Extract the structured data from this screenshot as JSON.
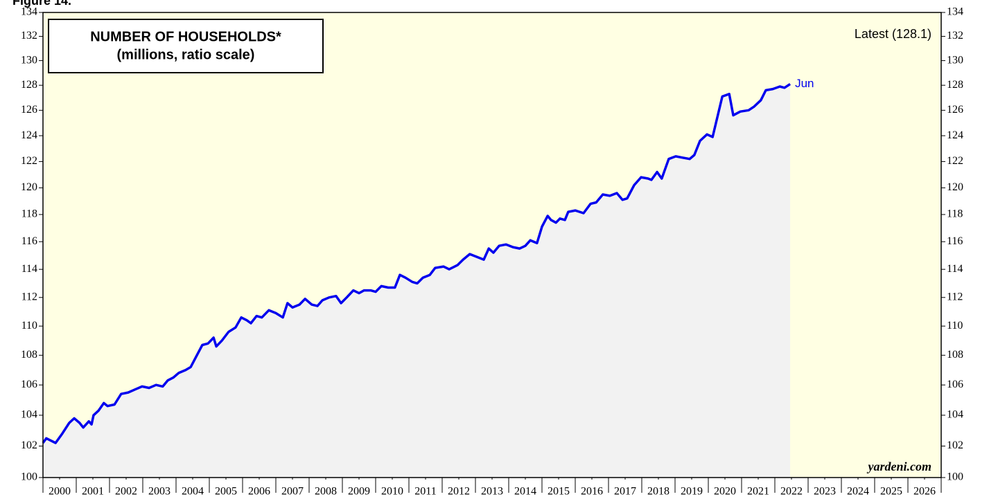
{
  "chart_data": {
    "type": "line",
    "figure_label": "Figure 14.",
    "title": "NUMBER OF HOUSEHOLDS*",
    "subtitle": "(millions, ratio scale)",
    "annotations": [
      "Latest (128.1)",
      "Jun",
      "yardeni.com"
    ],
    "log_scale": true,
    "color": "#0000ee",
    "x": [
      2000.0,
      2000.1,
      2000.38,
      2000.58,
      2000.79,
      2000.94,
      2001.1,
      2001.21,
      2001.38,
      2001.46,
      2001.52,
      2001.67,
      2001.83,
      2001.94,
      2002.15,
      2002.35,
      2002.56,
      2002.77,
      2002.98,
      2003.19,
      2003.4,
      2003.6,
      2003.75,
      2003.92,
      2004.08,
      2004.29,
      2004.44,
      2004.65,
      2004.79,
      2004.96,
      2005.13,
      2005.21,
      2005.38,
      2005.58,
      2005.79,
      2005.96,
      2006.13,
      2006.25,
      2006.42,
      2006.58,
      2006.79,
      2007.0,
      2007.21,
      2007.35,
      2007.5,
      2007.71,
      2007.88,
      2008.08,
      2008.25,
      2008.4,
      2008.6,
      2008.81,
      2008.96,
      2009.13,
      2009.33,
      2009.5,
      2009.65,
      2009.85,
      2010.0,
      2010.17,
      2010.38,
      2010.58,
      2010.73,
      2010.9,
      2011.1,
      2011.25,
      2011.42,
      2011.63,
      2011.79,
      2012.04,
      2012.21,
      2012.46,
      2012.63,
      2012.83,
      2013.04,
      2013.25,
      2013.4,
      2013.54,
      2013.71,
      2013.92,
      2014.13,
      2014.33,
      2014.5,
      2014.65,
      2014.85,
      2015.0,
      2015.17,
      2015.27,
      2015.42,
      2015.54,
      2015.69,
      2015.79,
      2016.0,
      2016.25,
      2016.46,
      2016.63,
      2016.83,
      2017.04,
      2017.25,
      2017.42,
      2017.56,
      2017.77,
      2017.98,
      2018.19,
      2018.29,
      2018.46,
      2018.6,
      2018.81,
      2019.02,
      2019.23,
      2019.44,
      2019.58,
      2019.75,
      2019.96,
      2020.13,
      2020.42,
      2020.63,
      2020.75,
      2020.96,
      2021.21,
      2021.38,
      2021.58,
      2021.73,
      2021.94,
      2022.15,
      2022.29,
      2022.46
    ],
    "series": [
      {
        "color": "#0000ee",
        "values": [
          102.2,
          102.5,
          102.2,
          102.8,
          103.5,
          103.8,
          103.5,
          103.2,
          103.6,
          103.4,
          104.0,
          104.3,
          104.8,
          104.6,
          104.7,
          105.4,
          105.5,
          105.7,
          105.9,
          105.8,
          106.0,
          105.9,
          106.3,
          106.5,
          106.8,
          107.0,
          107.2,
          108.1,
          108.7,
          108.8,
          109.2,
          108.6,
          109.0,
          109.6,
          109.9,
          110.6,
          110.4,
          110.2,
          110.7,
          110.6,
          111.1,
          110.9,
          110.6,
          111.6,
          111.3,
          111.5,
          111.9,
          111.5,
          111.4,
          111.8,
          112.0,
          112.1,
          111.6,
          112.0,
          112.5,
          112.3,
          112.5,
          112.5,
          112.4,
          112.8,
          112.7,
          112.7,
          113.6,
          113.4,
          113.1,
          113.0,
          113.4,
          113.6,
          114.1,
          114.2,
          114.0,
          114.3,
          114.7,
          115.1,
          114.9,
          114.7,
          115.5,
          115.2,
          115.7,
          115.8,
          115.6,
          115.5,
          115.7,
          116.1,
          115.9,
          117.1,
          117.9,
          117.6,
          117.4,
          117.7,
          117.6,
          118.2,
          118.3,
          118.1,
          118.8,
          118.9,
          119.5,
          119.4,
          119.6,
          119.1,
          119.2,
          120.2,
          120.8,
          120.7,
          120.6,
          121.2,
          120.7,
          122.2,
          122.4,
          122.3,
          122.2,
          122.5,
          123.6,
          124.1,
          123.9,
          127.1,
          127.3,
          125.6,
          125.9,
          126.0,
          126.3,
          126.8,
          127.6,
          127.7,
          127.9,
          127.8,
          128.1
        ]
      }
    ],
    "xlim": [
      2000,
      2027
    ],
    "xticks": [
      {
        "value": 2000.5,
        "label": "2000"
      },
      {
        "value": 2001.5,
        "label": "2001"
      },
      {
        "value": 2002.5,
        "label": "2002"
      },
      {
        "value": 2003.5,
        "label": "2003"
      },
      {
        "value": 2004.5,
        "label": "2004"
      },
      {
        "value": 2005.5,
        "label": "2005"
      },
      {
        "value": 2006.5,
        "label": "2006"
      },
      {
        "value": 2007.5,
        "label": "2007"
      },
      {
        "value": 2008.5,
        "label": "2008"
      },
      {
        "value": 2009.5,
        "label": "2009"
      },
      {
        "value": 2010.5,
        "label": "2010"
      },
      {
        "value": 2011.5,
        "label": "2011"
      },
      {
        "value": 2012.5,
        "label": "2012"
      },
      {
        "value": 2013.5,
        "label": "2013"
      },
      {
        "value": 2014.5,
        "label": "2014"
      },
      {
        "value": 2015.5,
        "label": "2015"
      },
      {
        "value": 2016.5,
        "label": "2016"
      },
      {
        "value": 2017.5,
        "label": "2017"
      },
      {
        "value": 2018.5,
        "label": "2018"
      },
      {
        "value": 2019.5,
        "label": "2019"
      },
      {
        "value": 2020.5,
        "label": "2020"
      },
      {
        "value": 2021.5,
        "label": "2021"
      },
      {
        "value": 2022.5,
        "label": "2022"
      },
      {
        "value": 2023.5,
        "label": "2023"
      },
      {
        "value": 2024.5,
        "label": "2024"
      },
      {
        "value": 2025.5,
        "label": "2025"
      },
      {
        "value": 2026.5,
        "label": "2026"
      }
    ],
    "ylim": [
      100,
      134
    ],
    "yticks": [
      100,
      102,
      104,
      106,
      108,
      110,
      112,
      114,
      116,
      118,
      120,
      122,
      124,
      126,
      128,
      130,
      132,
      134
    ]
  }
}
